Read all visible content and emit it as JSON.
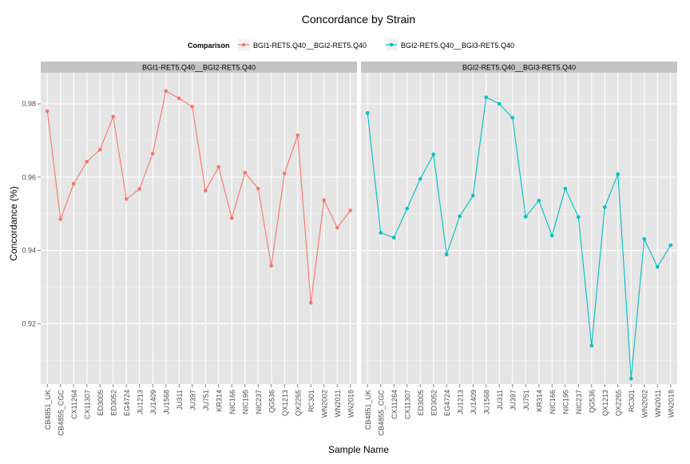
{
  "chart_data": {
    "type": "line",
    "title": "Concordance by Strain",
    "xlabel": "Sample Name",
    "ylabel": "Concordance (%)",
    "legend": {
      "title": "Comparison",
      "position": "top",
      "entries": [
        {
          "label": "BGI1-RET5.Q40__BGI2-RET5.Q40",
          "color": "#F8766D"
        },
        {
          "label": "BGI2-RET5.Q40__BGI3-RET5.Q40",
          "color": "#00BFC4"
        }
      ]
    },
    "ylim": [
      0.9035,
      0.9885
    ],
    "y_ticks": [
      "0.92",
      "0.94",
      "0.96",
      "0.98"
    ],
    "categories": [
      "CB4851_UK",
      "CB4855_CGC",
      "CX11264",
      "CX11307",
      "ED3005",
      "ED3052",
      "EG4724",
      "JU1213",
      "JU1409",
      "JU1568",
      "JU311",
      "JU397",
      "JU751",
      "KR314",
      "NIC166",
      "NIC195",
      "NIC237",
      "QG536",
      "QX1213",
      "QX2265",
      "RC301",
      "WN2002",
      "WN2011",
      "WN2018"
    ],
    "grid": true,
    "facets": [
      {
        "strip_label": "BGI1-RET5.Q40__BGI2-RET5.Q40",
        "series_name": "BGI1-RET5.Q40__BGI2-RET5.Q40",
        "color": "#F8766D",
        "values": [
          0.978,
          0.9485,
          0.9582,
          0.9642,
          0.9675,
          0.9765,
          0.954,
          0.9568,
          0.9664,
          0.9835,
          0.9815,
          0.9792,
          0.9563,
          0.9628,
          0.9488,
          0.9612,
          0.9569,
          0.9358,
          0.961,
          0.9714,
          0.9257,
          0.9537,
          0.9462,
          0.9509
        ]
      },
      {
        "strip_label": "BGI2-RET5.Q40__BGI3-RET5.Q40",
        "series_name": "BGI2-RET5.Q40__BGI3-RET5.Q40",
        "color": "#00BFC4",
        "values": [
          0.9775,
          0.9448,
          0.9435,
          0.9514,
          0.9595,
          0.9662,
          0.9389,
          0.9493,
          0.9549,
          0.9818,
          0.98,
          0.9762,
          0.9492,
          0.9536,
          0.944,
          0.9569,
          0.9491,
          0.914,
          0.9518,
          0.9608,
          0.905,
          0.9431,
          0.9355,
          0.9414
        ]
      }
    ]
  }
}
